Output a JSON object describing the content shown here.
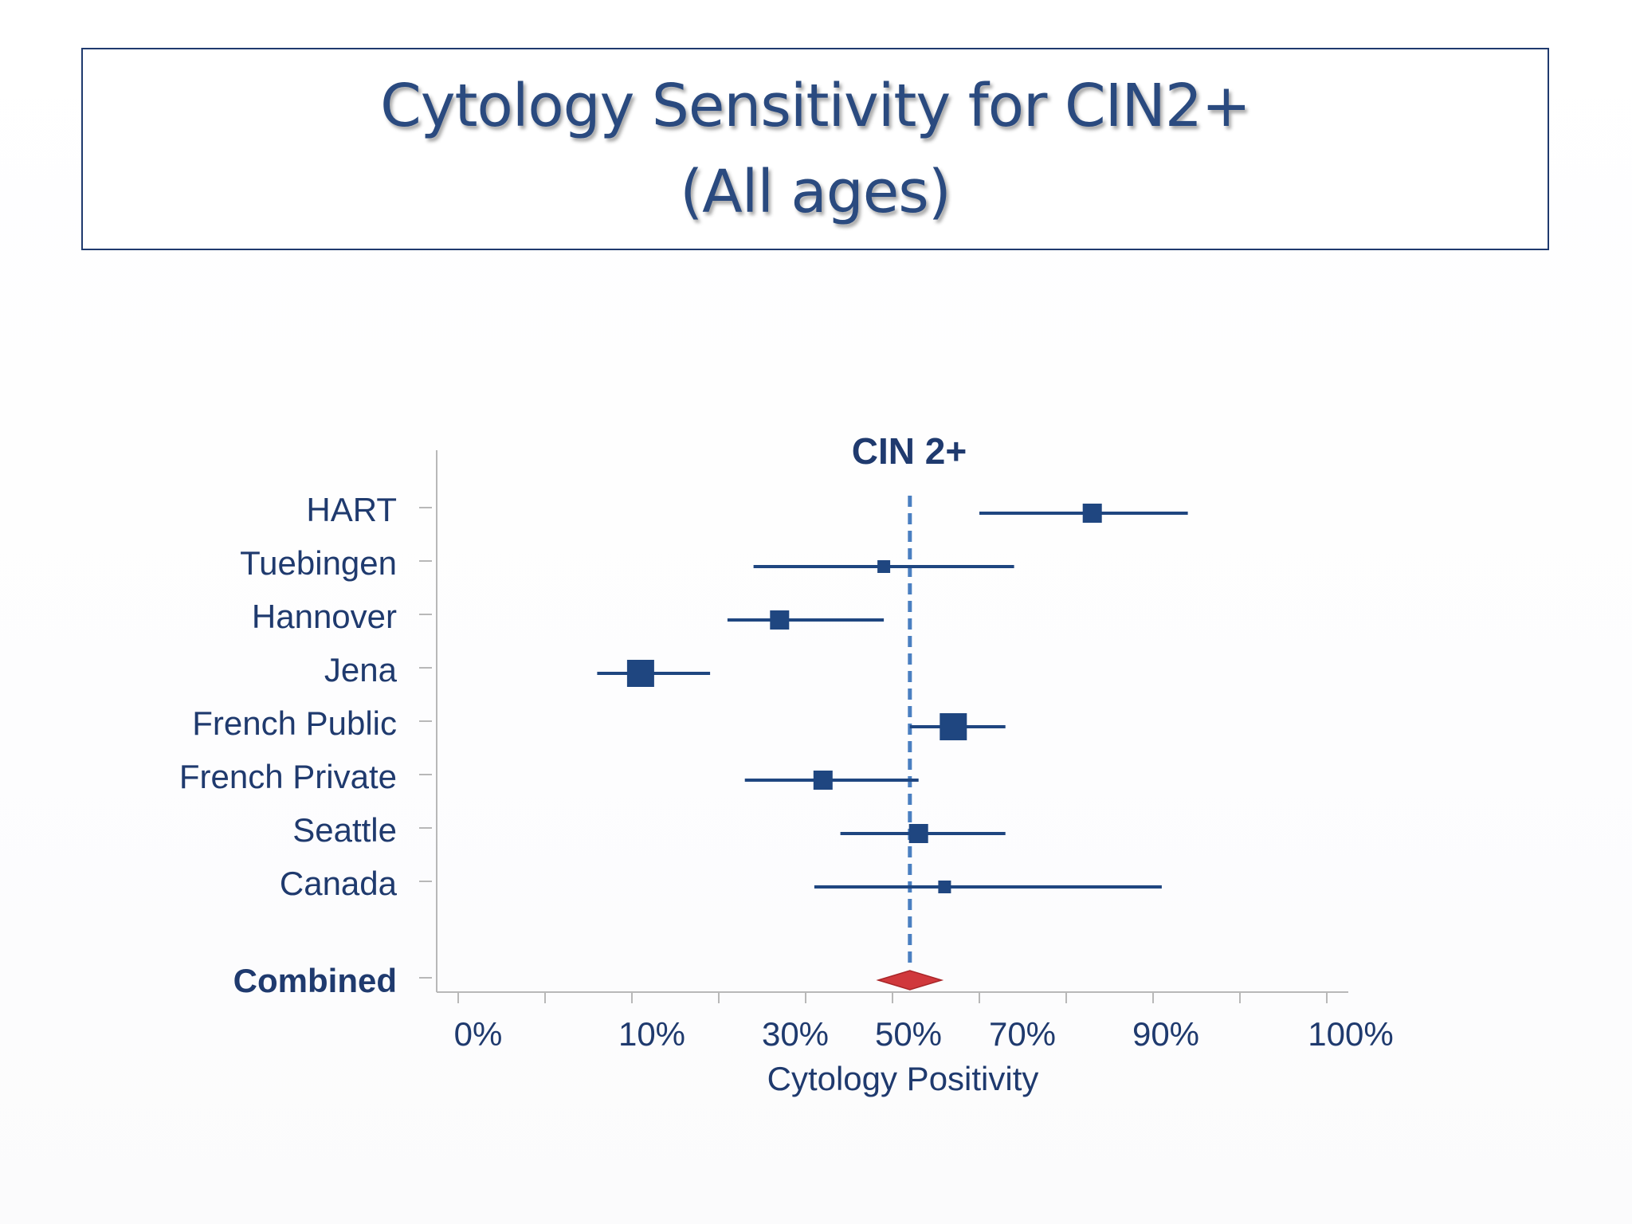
{
  "slide": {
    "title_line1": "Cytology Sensitivity for CIN2+",
    "title_line2": "(All ages)"
  },
  "chart_data": {
    "type": "forest",
    "title": "CIN 2+",
    "xlabel": "Cytology Positivity",
    "x_tick_labels": [
      "0%",
      "10%",
      "30%",
      "50%",
      "70%",
      "90%",
      "100%"
    ],
    "xlim": [
      0,
      100
    ],
    "reference_line": 52,
    "grid": false,
    "studies": [
      {
        "name": "HART",
        "estimate": 73,
        "lower": 60,
        "upper": 84,
        "weight": "medium"
      },
      {
        "name": "Tuebingen",
        "estimate": 49,
        "lower": 34,
        "upper": 64,
        "weight": "small"
      },
      {
        "name": "Hannover",
        "estimate": 37,
        "lower": 31,
        "upper": 49,
        "weight": "medium"
      },
      {
        "name": "Jena",
        "estimate": 21,
        "lower": 16,
        "upper": 29,
        "weight": "large"
      },
      {
        "name": "French Public",
        "estimate": 57,
        "lower": 52,
        "upper": 63,
        "weight": "large"
      },
      {
        "name": "French Private",
        "estimate": 42,
        "lower": 33,
        "upper": 53,
        "weight": "medium"
      },
      {
        "name": "Seattle",
        "estimate": 53,
        "lower": 44,
        "upper": 63,
        "weight": "medium"
      },
      {
        "name": "Canada",
        "estimate": 56,
        "lower": 41,
        "upper": 81,
        "weight": "small"
      }
    ],
    "combined": {
      "name": "Combined",
      "estimate": 52,
      "lower": 50,
      "upper": 54
    },
    "colors": {
      "marker": "#1f4680",
      "text": "#1f3a6e",
      "reference": "#4a7fc1",
      "combined": "#d0383c",
      "axis": "#b8b8b8"
    }
  }
}
